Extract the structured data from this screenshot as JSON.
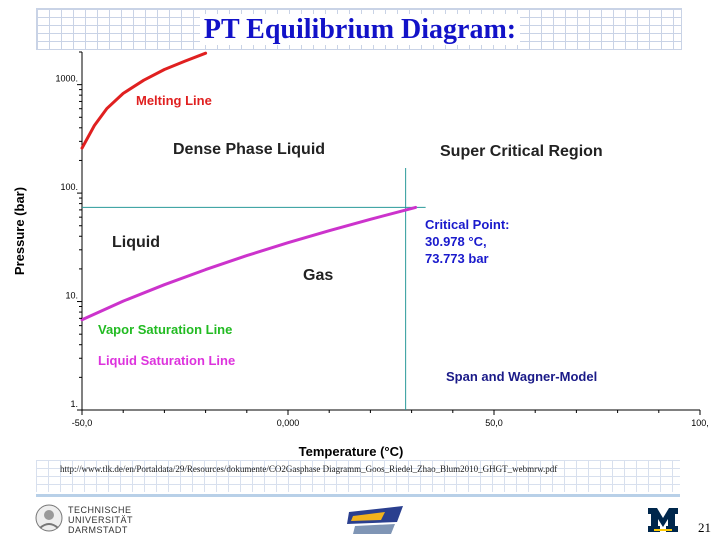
{
  "slide": {
    "title": "PT Equilibrium Diagram:",
    "source": "http://www.tlk.de/en/Portaldata/29/Resources/dokumente/CO2Gasphase Diagramm_Goos_Riedel_Zhao_Blum2010_GHGT_webmrw.pdf",
    "page_number": "21",
    "footer_logos": {
      "tud_lines": [
        "TECHNISCHE",
        "UNIVERSITÄT",
        "DARMSTADT"
      ]
    },
    "colors": {
      "title": "#1212c8",
      "melting": "#e02020",
      "saturation": "#cc33cc",
      "critical_text": "#1a1acc",
      "vapor_label": "#22bb22",
      "liquid_label": "#dd33dd",
      "guide": "#2a9a9a"
    }
  },
  "chart_data": {
    "type": "line",
    "title": "",
    "xlabel": "Temperature (°C)",
    "ylabel": "Pressure (bar)",
    "xlim": [
      -50,
      100
    ],
    "ylim": [
      1,
      2000
    ],
    "yscale": "log",
    "x_ticks": [
      -50,
      0,
      50,
      100
    ],
    "x_tick_labels": [
      "-50,0",
      "0,000",
      "50,0",
      "100,"
    ],
    "y_ticks": [
      1,
      10,
      100,
      1000
    ],
    "y_tick_labels": [
      "1.",
      "10.",
      "100.",
      "1000."
    ],
    "grid": false,
    "series": [
      {
        "name": "Melting Line",
        "color": "#e02020",
        "x": [
          -50,
          -47,
          -44,
          -40,
          -35,
          -30,
          -25,
          -20
        ],
        "y": [
          260,
          420,
          600,
          830,
          1100,
          1380,
          1650,
          1950
        ]
      },
      {
        "name": "Vapor Saturation Line",
        "color": "#cc33cc",
        "x": [
          -50,
          -40,
          -30,
          -20,
          -10,
          0,
          10,
          20,
          30.978
        ],
        "y": [
          6.8,
          10.1,
          14.3,
          19.7,
          26.5,
          34.9,
          45.0,
          57.3,
          73.773
        ]
      }
    ],
    "critical_point": {
      "x": 30.978,
      "y": 73.773
    },
    "annotations": {
      "melting_line": "Melting Line",
      "dense_phase": "Dense Phase Liquid",
      "super_critical": "Super Critical Region",
      "liquid": "Liquid",
      "gas": "Gas",
      "critical_lines": [
        "Critical Point:",
        "30.978 °C,",
        "73.773 bar"
      ],
      "vapor_sat": "Vapor Saturation Line",
      "liquid_sat": "Liquid Saturation Line",
      "model": "Span and Wagner-Model"
    }
  }
}
